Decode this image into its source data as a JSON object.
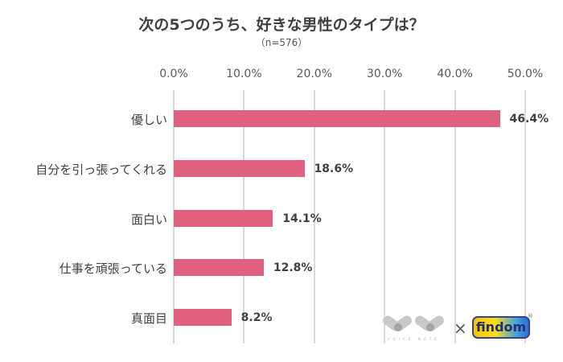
{
  "chart_data": {
    "type": "bar",
    "orientation": "horizontal",
    "title": "次の5つのうち、好きな男性のタイプは？",
    "subtitle": "（n=576）",
    "categories": [
      "優しい",
      "自分を引っ張ってくれる",
      "面白い",
      "仕事を頑張っている",
      "真面目"
    ],
    "values": [
      46.4,
      18.6,
      14.1,
      12.8,
      8.2
    ],
    "value_labels": [
      "46.4%",
      "18.6%",
      "14.1%",
      "12.8%",
      "8.2%"
    ],
    "xlabel": "",
    "ylabel": "",
    "xlim": [
      0,
      50
    ],
    "x_ticks": [
      "0.0%",
      "10.0%",
      "20.0%",
      "30.0%",
      "40.0%",
      "50.0%"
    ],
    "grid": true,
    "bar_color": "#e06080",
    "axis_position": "top"
  },
  "logos": {
    "left": "VOICE NOTE",
    "separator": "×",
    "right": "findom",
    "right_mark": "®"
  }
}
